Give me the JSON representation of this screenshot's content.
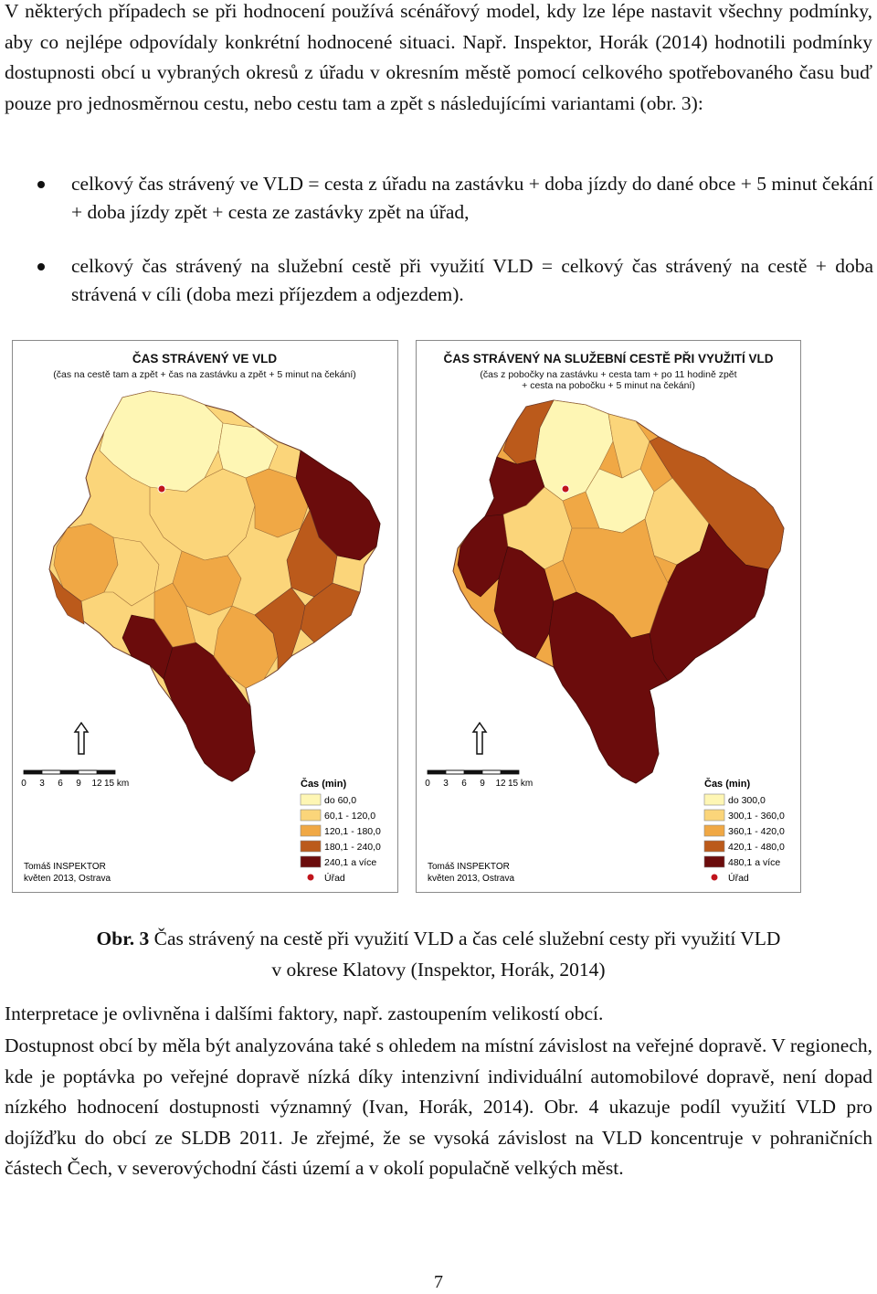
{
  "paragraphs": {
    "intro": "V některých případech se při hodnocení používá scénářový model, kdy lze lépe nastavit všechny podmínky, aby co nejlépe odpovídaly konkrétní hodnocené situaci. Např. Inspektor, Horák (2014) hodnotili podmínky dostupnosti obcí u vybraných okresů z úřadu v okresním městě pomocí celkového spotřebovaného času buď pouze pro jednosměrnou cestu, nebo cestu tam a zpět s následujícími variantami (obr. 3):",
    "after1": "Interpretace je ovlivněna i dalšími faktory, např. zastoupením velikostí obcí.",
    "after2": "Dostupnost obcí by měla být analyzována také s ohledem na místní závislost na veřejné dopravě. V regionech, kde je poptávka po veřejné dopravě nízká díky intenzivní individuální automobilové dopravě, není dopad nízkého hodnocení dostupnosti významný (Ivan, Horák, 2014). Obr. 4 ukazuje podíl využití VLD pro dojížďku do obcí ze SLDB 2011. Je zřejmé, že se vysoká závislost na VLD koncentruje v pohraničních částech Čech, v severovýchodní části území a v okolí populačně velkých měst."
  },
  "bullets": [
    "celkový čas strávený ve VLD = cesta z úřadu na zastávku + doba jízdy do dané obce + 5 minut čekání + doba jízdy zpět + cesta ze zastávky zpět na úřad,",
    "celkový čas strávený na služební cestě při využití VLD = celkový čas strávený na cestě + doba strávená v cíli (doba mezi příjezdem a odjezdem)."
  ],
  "maps": [
    {
      "title": "ČAS STRÁVENÝ VE VLD",
      "subtitle_lines": [
        "(čas na cestě tam a zpět + čas na zastávku a zpět + 5 minut na čekání)"
      ],
      "scale_ticks": [
        "0",
        "3",
        "6",
        "9",
        "12",
        "15 km"
      ],
      "legend_title": "Čas (min)",
      "legend_items": [
        {
          "label": "do 60,0",
          "color": "#fef6b4"
        },
        {
          "label": "60,1 - 120,0",
          "color": "#fbd57a"
        },
        {
          "label": "120,1 - 180,0",
          "color": "#f0a845"
        },
        {
          "label": "180,1 - 240,0",
          "color": "#bb5a1b"
        },
        {
          "label": "240,1 a více",
          "color": "#6b0c0c"
        }
      ],
      "office_label": "Úřad",
      "author_lines": [
        "Tomáš INSPEKTOR",
        "květen 2013, Ostrava"
      ]
    },
    {
      "title": "ČAS STRÁVENÝ NA SLUŽEBNÍ CESTĚ PŘI VYUŽITÍ VLD",
      "subtitle_lines": [
        "(čas z pobočky na zastávku + cesta tam + po 11 hodině zpět",
        "+ cesta na pobočku + 5 minut na čekání)"
      ],
      "scale_ticks": [
        "0",
        "3",
        "6",
        "9",
        "12",
        "15 km"
      ],
      "legend_title": "Čas (min)",
      "legend_items": [
        {
          "label": "do 300,0",
          "color": "#fef6b4"
        },
        {
          "label": "300,1 - 360,0",
          "color": "#fbd57a"
        },
        {
          "label": "360,1 - 420,0",
          "color": "#f0a845"
        },
        {
          "label": "420,1 - 480,0",
          "color": "#bb5a1b"
        },
        {
          "label": "480,1 a více",
          "color": "#6b0c0c"
        }
      ],
      "office_label": "Úřad",
      "author_lines": [
        "Tomáš INSPEKTOR",
        "květen 2013, Ostrava"
      ]
    }
  ],
  "caption": {
    "label": "Obr. 3",
    "line1": "Čas strávený na cestě při využití VLD a čas celé služební cesty při využití VLD",
    "line2": "v okrese Klatovy (Inspektor, Horák, 2014)"
  },
  "page_number": "7",
  "colors": {
    "office_dot": "#c0141c",
    "border": "#6a3a2a"
  }
}
